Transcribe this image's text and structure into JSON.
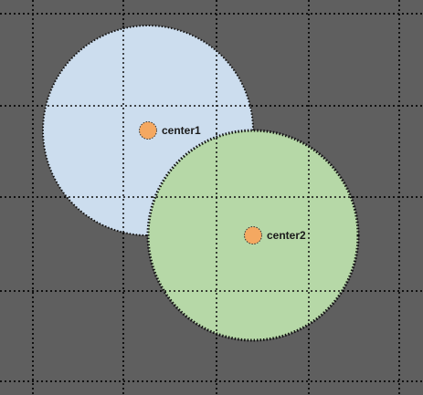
{
  "diagram": {
    "background_color": "#5f5f5f",
    "grid_line_color": "#111111",
    "circle1": {
      "fill": "#cfe1f3",
      "center_label": "center1"
    },
    "circle2": {
      "fill": "#b6d8a7",
      "center_label": "center2"
    },
    "center_point_color": "#f4a861"
  }
}
